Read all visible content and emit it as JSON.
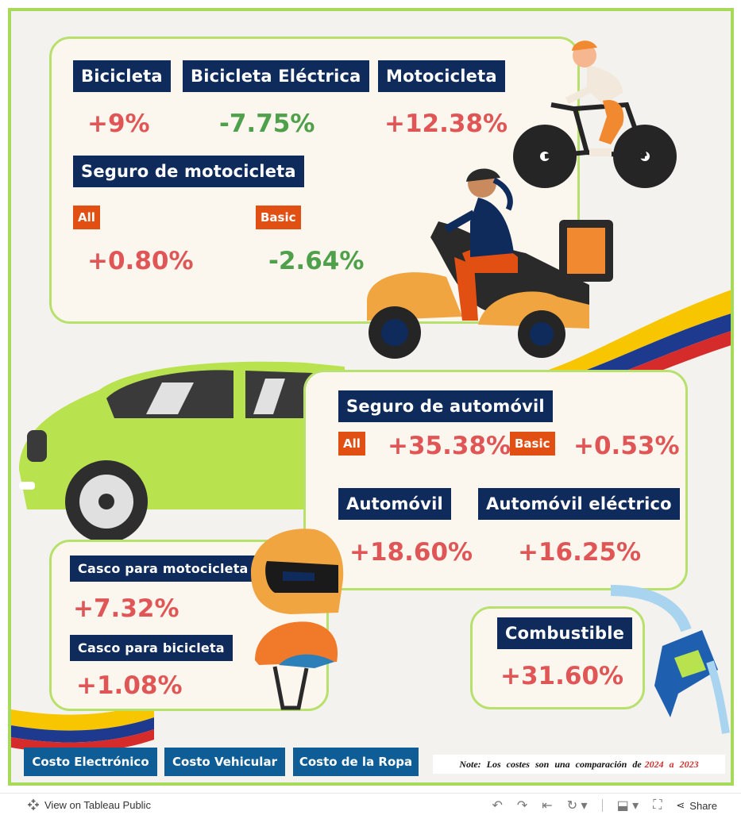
{
  "bike_card": {
    "bicicleta": {
      "label": "Bicicleta",
      "value": "+9%"
    },
    "bicicleta_electrica": {
      "label": "Bicicleta Eléctrica",
      "value": "-7.75%"
    },
    "motocicleta": {
      "label": "Motocicleta",
      "value": "+12.38%"
    },
    "seguro_moto": {
      "label": "Seguro de motocicleta",
      "all_label": "All",
      "all_value": "+0.80%",
      "basic_label": "Basic",
      "basic_value": "-2.64%"
    }
  },
  "car_card": {
    "seguro_auto": {
      "label": "Seguro de automóvil",
      "all_label": "All",
      "all_value": "+35.38%",
      "basic_label": "Basic",
      "basic_value": "+0.53%"
    },
    "automovil": {
      "label": "Automóvil",
      "value": "+18.60%"
    },
    "automovil_electrico": {
      "label": "Automóvil eléctrico",
      "value": "+16.25%"
    }
  },
  "helmet_card": {
    "casco_moto": {
      "label": "Casco para motocicleta",
      "value": "+7.32%"
    },
    "casco_bici": {
      "label": "Casco para bicicleta",
      "value": "+1.08%"
    }
  },
  "fuel_card": {
    "label": "Combustible",
    "value": "+31.60%"
  },
  "nav_buttons": [
    "Costo Electrónico",
    "Costo Vehicular",
    "Costo de la Ropa"
  ],
  "note": {
    "text": "Note: Los costes son una comparación de",
    "years": "2024 a 2023"
  },
  "footer": {
    "view_label": "View on Tableau Public",
    "share_label": "Share"
  },
  "colors": {
    "navy": "#0f2b5b",
    "orange": "#e24f12",
    "red": "#e05656",
    "green": "#4fa04a",
    "card_border": "#b7e06d",
    "button": "#0e5d96"
  },
  "icons": [
    "tableau-logo-icon",
    "undo-icon",
    "redo-icon",
    "revert-icon",
    "refresh-icon",
    "download-icon",
    "fullscreen-icon",
    "share-icon"
  ]
}
